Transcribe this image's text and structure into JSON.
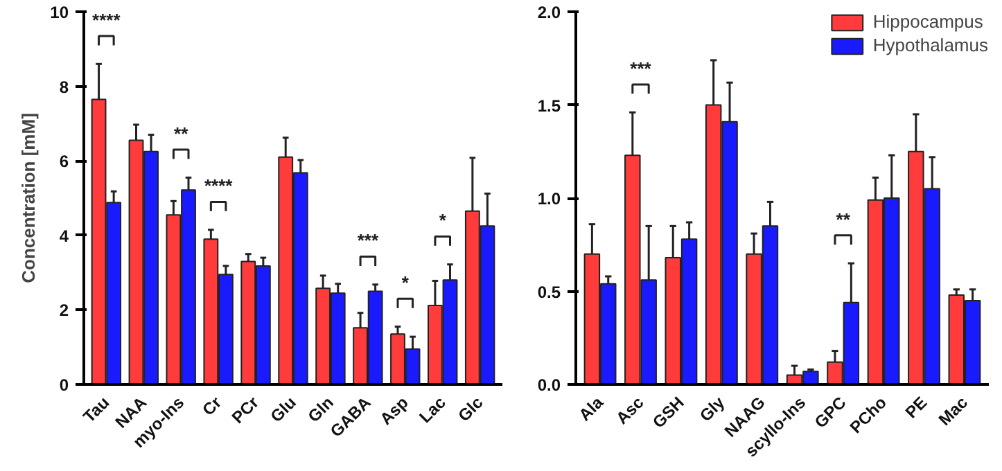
{
  "chart_data": [
    {
      "type": "bar",
      "ylabel": "Concentration [mM]",
      "categories": [
        "Tau",
        "NAA",
        "myo-Ins",
        "Cr",
        "PCr",
        "Glu",
        "Gln",
        "GABA",
        "Asp",
        "Lac",
        "Glc"
      ],
      "ylim": [
        0,
        10
      ],
      "yticks": [
        0,
        2,
        4,
        6,
        8,
        10
      ],
      "grid": false,
      "series": [
        {
          "color": "#ff3b3b",
          "values": [
            7.65,
            6.55,
            4.55,
            3.9,
            3.3,
            6.1,
            2.58,
            1.52,
            1.35,
            2.12,
            4.65
          ],
          "errors": [
            [
              7.65,
              8.6
            ],
            [
              6.55,
              6.97
            ],
            [
              4.55,
              4.92
            ],
            [
              3.9,
              4.15
            ],
            [
              3.3,
              3.5
            ],
            [
              6.1,
              6.62
            ],
            [
              2.58,
              2.92
            ],
            [
              1.52,
              1.92
            ],
            [
              1.35,
              1.55
            ],
            [
              2.12,
              2.78
            ],
            [
              4.65,
              6.08
            ]
          ]
        },
        {
          "color": "#1a1aff",
          "values": [
            4.88,
            6.25,
            5.22,
            2.95,
            3.18,
            5.68,
            2.45,
            2.5,
            0.95,
            2.8,
            4.25
          ],
          "errors": [
            [
              4.88,
              5.18
            ],
            [
              6.25,
              6.7
            ],
            [
              5.22,
              5.55
            ],
            [
              2.95,
              3.18
            ],
            [
              3.18,
              3.4
            ],
            [
              5.68,
              6.02
            ],
            [
              2.45,
              2.7
            ],
            [
              2.5,
              2.68
            ],
            [
              0.95,
              1.28
            ],
            [
              2.8,
              3.22
            ],
            [
              4.25,
              5.12
            ]
          ]
        }
      ],
      "annotations": [
        {
          "text": "****",
          "x": "Tau",
          "y": 8.6
        },
        {
          "text": "**",
          "x": "myo-Ins",
          "y": 5.22
        },
        {
          "text": "****",
          "x": "Cr",
          "y": 3.9
        },
        {
          "text": "***",
          "x": "GABA",
          "y": 2.5
        },
        {
          "text": "*",
          "x": "Asp",
          "y": 1.35
        },
        {
          "text": "*",
          "x": "Lac",
          "y": 2.8
        }
      ]
    },
    {
      "type": "bar",
      "categories": [
        "Ala",
        "Asc",
        "GSH",
        "Gly",
        "NAAG",
        "scyllo-Ins",
        "GPC",
        "PCho",
        "PE",
        "Mac"
      ],
      "ylim": [
        0,
        2.0
      ],
      "yticks": [
        {
          "value": 0,
          "label": "0.0"
        },
        0.5,
        {
          "value": 1,
          "label": "1.0"
        },
        1.5,
        {
          "value": 2,
          "label": "2.0"
        }
      ],
      "grid": false,
      "legend": "top right",
      "series": [
        {
          "name": "Hippocampus",
          "color": "#ff3b3b",
          "values": [
            0.7,
            1.23,
            0.68,
            1.5,
            0.7,
            0.05,
            0.12,
            0.99,
            1.25,
            0.48
          ],
          "errors": [
            [
              0.7,
              0.86
            ],
            [
              1.23,
              1.46
            ],
            [
              0.68,
              0.85
            ],
            [
              1.5,
              1.74
            ],
            [
              0.7,
              0.81
            ],
            [
              0.05,
              0.1
            ],
            [
              0.12,
              0.18
            ],
            [
              0.99,
              1.11
            ],
            [
              1.25,
              1.45
            ],
            [
              0.48,
              0.51
            ]
          ]
        },
        {
          "name": "Hypothalamus",
          "color": "#1a1aff",
          "values": [
            0.54,
            0.56,
            0.78,
            1.41,
            0.85,
            0.07,
            0.44,
            1.0,
            1.05,
            0.45
          ],
          "errors": [
            [
              0.54,
              0.58
            ],
            [
              0.56,
              0.85
            ],
            [
              0.78,
              0.87
            ],
            [
              1.41,
              1.62
            ],
            [
              0.85,
              0.98
            ],
            [
              0.07,
              0.08
            ],
            [
              0.44,
              0.65
            ],
            [
              1.0,
              1.23
            ],
            [
              1.05,
              1.22
            ],
            [
              0.45,
              0.51
            ]
          ]
        }
      ],
      "annotations": [
        {
          "text": "***",
          "x": "Asc",
          "y": 1.46
        },
        {
          "text": "**",
          "x": "GPC",
          "y": 0.65
        }
      ]
    }
  ]
}
